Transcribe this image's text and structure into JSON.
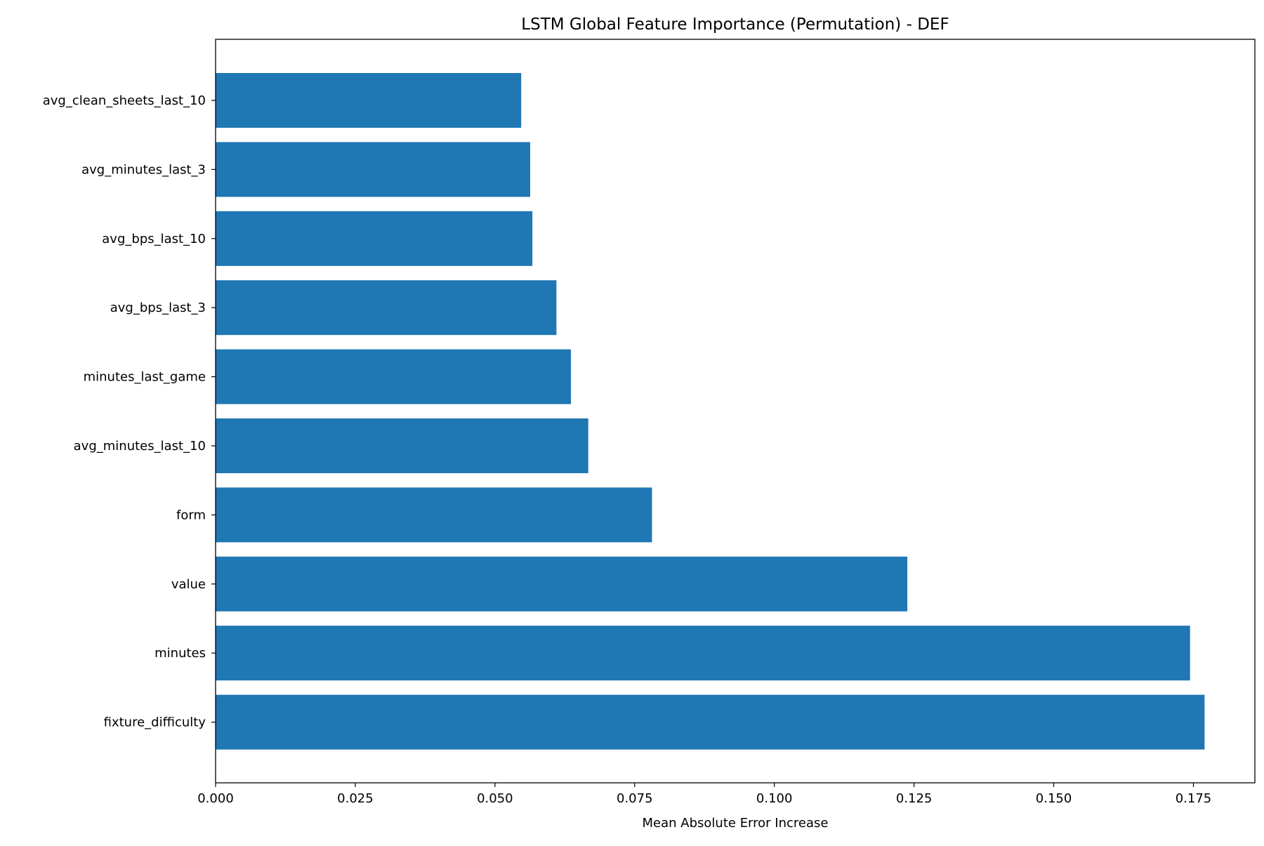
{
  "chart_data": {
    "type": "bar",
    "orientation": "horizontal",
    "title": "LSTM Global Feature Importance (Permutation) - DEF",
    "xlabel": "Mean Absolute Error Increase",
    "ylabel": "",
    "xlim": [
      0,
      0.186
    ],
    "xticks": [
      0.0,
      0.025,
      0.05,
      0.075,
      0.1,
      0.125,
      0.15,
      0.175
    ],
    "xtick_labels": [
      "0.000",
      "0.025",
      "0.050",
      "0.075",
      "0.100",
      "0.125",
      "0.150",
      "0.175"
    ],
    "grid": false,
    "legend": "none",
    "bar_color": "#1f77b4",
    "categories": [
      "avg_clean_sheets_last_10",
      "avg_minutes_last_3",
      "avg_bps_last_10",
      "avg_bps_last_3",
      "minutes_last_game",
      "avg_minutes_last_10",
      "form",
      "value",
      "minutes",
      "fixture_difficulty"
    ],
    "values": [
      0.0547,
      0.0563,
      0.0567,
      0.061,
      0.0636,
      0.0667,
      0.0781,
      0.1238,
      0.1744,
      0.177
    ]
  }
}
